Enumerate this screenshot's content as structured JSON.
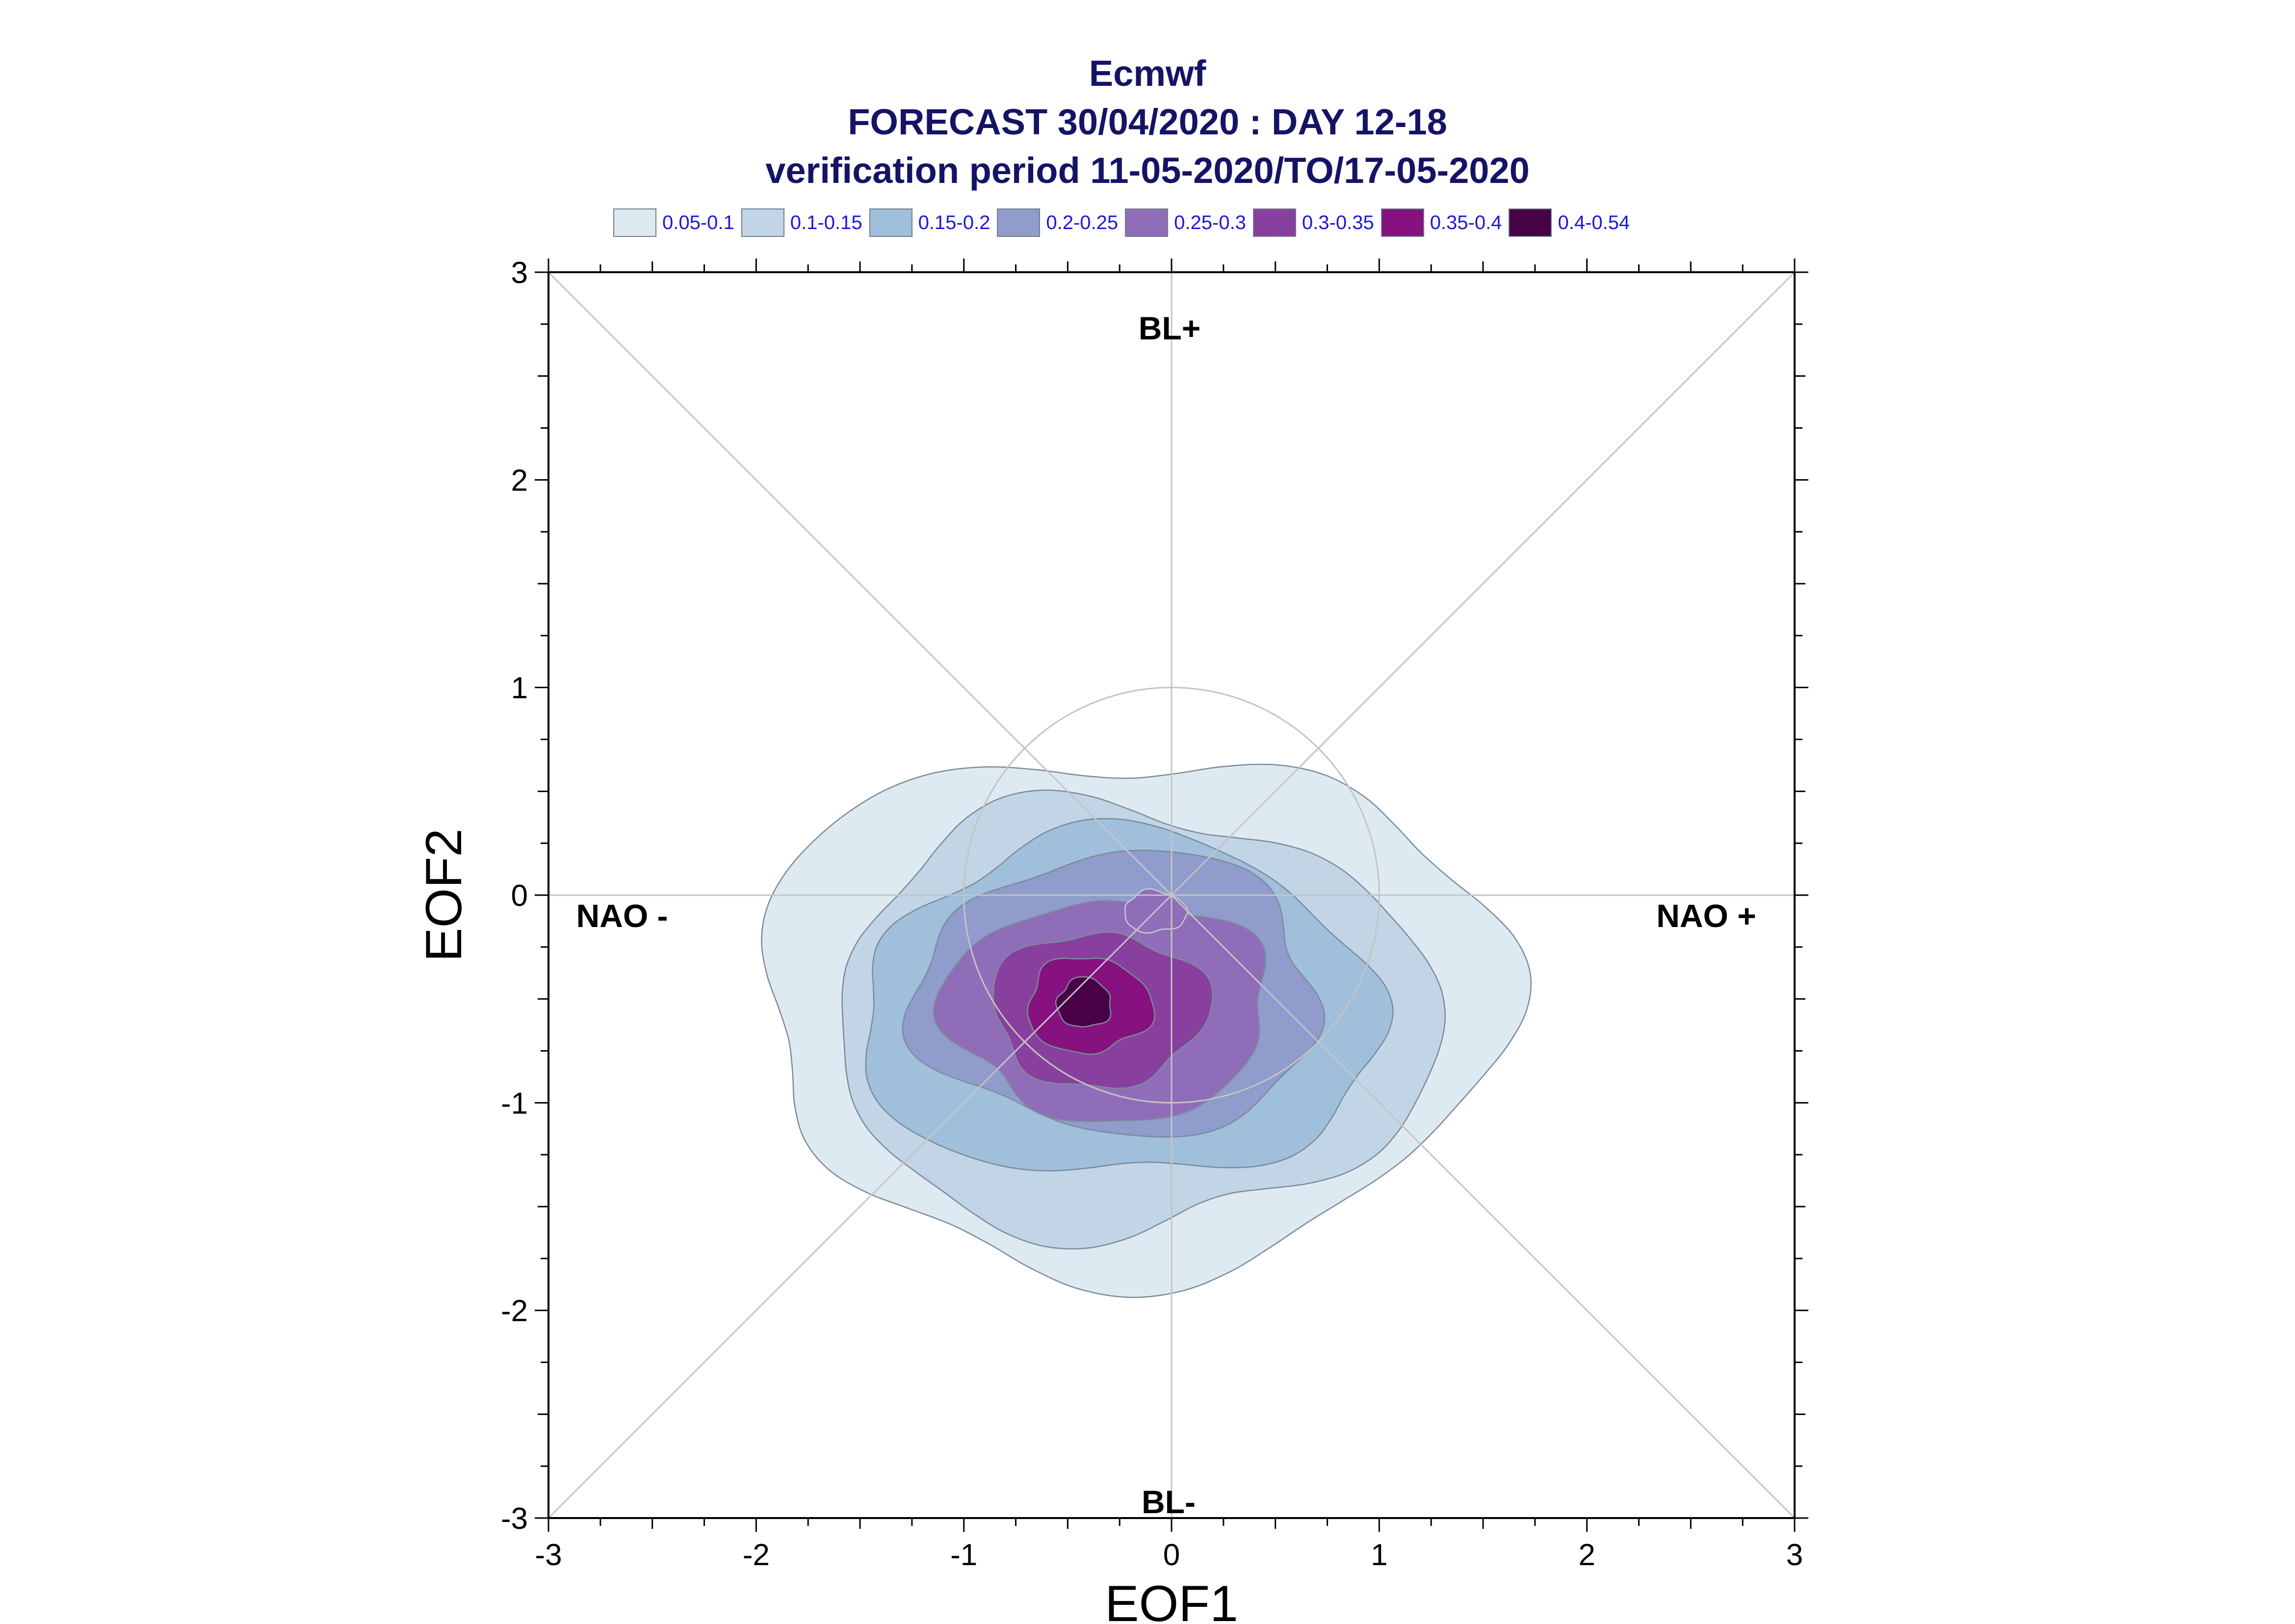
{
  "chart_data": {
    "type": "contour",
    "title": [
      "Ecmwf",
      "FORECAST 30/04/2020 : DAY 12-18",
      "verification period 11-05-2020/TO/17-05-2020"
    ],
    "xlabel": "EOF1",
    "ylabel": "EOF2",
    "xlim": [
      -3,
      3
    ],
    "ylim": [
      -3,
      3
    ],
    "xticks": [
      "-3",
      "-2",
      "-1",
      "0",
      "1",
      "2",
      "3"
    ],
    "yticks": [
      "-3",
      "-2",
      "-1",
      "0",
      "1",
      "2",
      "3"
    ],
    "grid": false,
    "legend_position": "top",
    "regime_labels": {
      "top": "BL+",
      "bottom": "BL-",
      "left": "NAO -",
      "right": "NAO +"
    },
    "reference_circle": {
      "center": [
        0,
        0
      ],
      "radius": 1
    },
    "levels": [
      {
        "label": "0.05-0.1",
        "color": "#deeaf2",
        "rx": 1.8,
        "ry": 1.25,
        "cx": -0.2,
        "cy": -0.55
      },
      {
        "label": "0.1-0.15",
        "color": "#c2d5e6",
        "rx": 1.45,
        "ry": 1.03,
        "cx": -0.2,
        "cy": -0.6
      },
      {
        "label": "0.15-0.2",
        "color": "#9fbfdb",
        "rx": 1.25,
        "ry": 0.83,
        "cx": -0.25,
        "cy": -0.55
      },
      {
        "label": "0.2-0.25",
        "color": "#8f9ccc",
        "rx": 0.97,
        "ry": 0.68,
        "cx": -0.25,
        "cy": -0.48
      },
      {
        "label": "0.25-0.3",
        "color": "#8f6db8",
        "rx": 0.78,
        "ry": 0.53,
        "cx": -0.3,
        "cy": -0.55
      },
      {
        "label": "0.3-0.35",
        "color": "#893f9e",
        "rx": 0.52,
        "ry": 0.37,
        "cx": -0.35,
        "cy": -0.55
      },
      {
        "label": "0.35-0.4",
        "color": "#86117f",
        "rx": 0.3,
        "ry": 0.23,
        "cx": -0.4,
        "cy": -0.53
      },
      {
        "label": "0.4-0.54",
        "color": "#480046",
        "rx": 0.13,
        "ry": 0.12,
        "cx": -0.42,
        "cy": -0.52
      }
    ],
    "secondary_peak": {
      "level": "0.25-0.3",
      "cx": -0.08,
      "cy": -0.08,
      "rx": 0.15,
      "ry": 0.1
    }
  }
}
